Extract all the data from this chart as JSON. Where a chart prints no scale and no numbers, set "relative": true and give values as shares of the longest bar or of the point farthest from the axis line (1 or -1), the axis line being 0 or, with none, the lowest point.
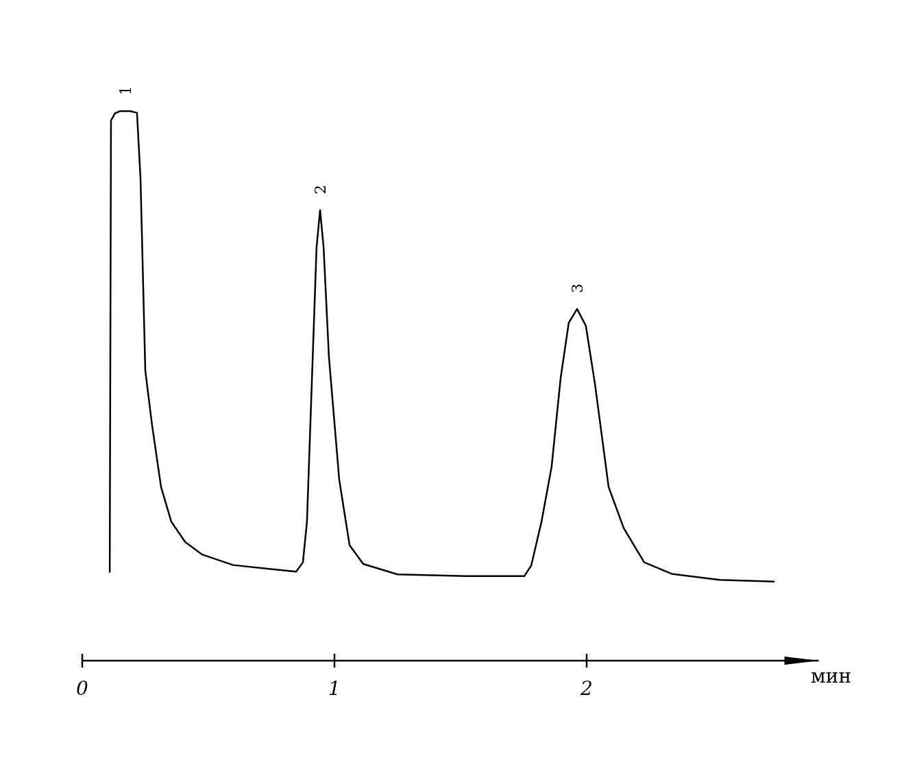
{
  "chart_data": {
    "type": "line",
    "relative": true,
    "xlabel": "мин",
    "xlim": [
      0,
      2.92
    ],
    "xticks": [
      0,
      1,
      2
    ],
    "grid": false,
    "marker": "none",
    "line_style": "solid",
    "x": [
      0.109,
      0.114,
      0.13,
      0.15,
      0.19,
      0.217,
      0.231,
      0.25,
      0.277,
      0.3125,
      0.353,
      0.408,
      0.476,
      0.598,
      0.761,
      0.848,
      0.875,
      0.891,
      0.91,
      0.929,
      0.943,
      0.957,
      0.978,
      1.019,
      1.06,
      1.114,
      1.25,
      1.522,
      1.753,
      1.78,
      1.821,
      1.861,
      1.897,
      1.929,
      1.962,
      1.997,
      2.033,
      2.087,
      2.147,
      2.228,
      2.337,
      2.527,
      2.745
    ],
    "series": [
      {
        "color": "#000000",
        "values": [
          0.16,
          0.983,
          0.996,
          1,
          1,
          0.997,
          0.878,
          0.528,
          0.428,
          0.316,
          0.253,
          0.216,
          0.193,
          0.174,
          0.166,
          0.162,
          0.179,
          0.253,
          0.503,
          0.752,
          0.82,
          0.752,
          0.553,
          0.329,
          0.21,
          0.176,
          0.157,
          0.154,
          0.154,
          0.173,
          0.253,
          0.353,
          0.515,
          0.615,
          0.64,
          0.609,
          0.503,
          0.316,
          0.241,
          0.179,
          0.158,
          0.147,
          0.144
        ]
      }
    ],
    "annotations": [
      {
        "text": "1",
        "x": 0.17,
        "y": 1
      },
      {
        "text": "2",
        "x": 0.943,
        "y": 0.82
      },
      {
        "text": "3",
        "x": 1.962,
        "y": 0.64
      }
    ]
  }
}
